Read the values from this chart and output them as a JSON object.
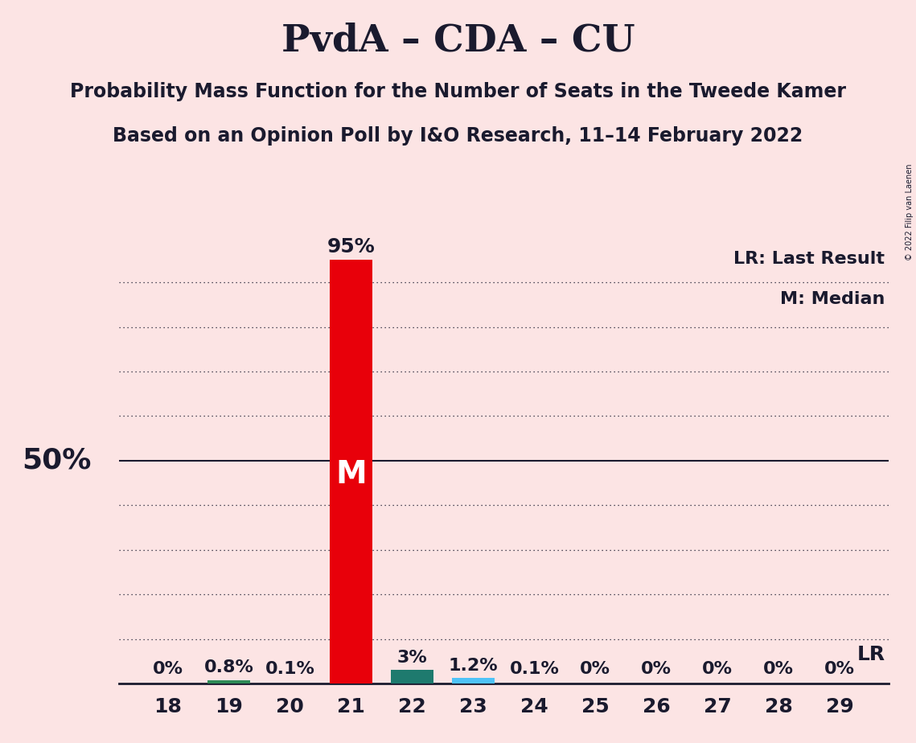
{
  "title": "PvdA – CDA – CU",
  "subtitle1": "Probability Mass Function for the Number of Seats in the Tweede Kamer",
  "subtitle2": "Based on an Opinion Poll by I&O Research, 11–14 February 2022",
  "copyright": "© 2022 Filip van Laenen",
  "seats": [
    18,
    19,
    20,
    21,
    22,
    23,
    24,
    25,
    26,
    27,
    28,
    29
  ],
  "probabilities": [
    0.0,
    0.8,
    0.1,
    95.0,
    3.0,
    1.2,
    0.1,
    0.0,
    0.0,
    0.0,
    0.0,
    0.0
  ],
  "prob_labels": [
    "0%",
    "0.8%",
    "0.1%",
    "95%",
    "3%",
    "1.2%",
    "0.1%",
    "0%",
    "0%",
    "0%",
    "0%",
    "0%"
  ],
  "bar_colors": [
    "#fce4e4",
    "#2e8b57",
    "#fce4e4",
    "#e8000a",
    "#1e7a6e",
    "#4fc3f7",
    "#fce4e4",
    "#fce4e4",
    "#fce4e4",
    "#fce4e4",
    "#fce4e4",
    "#fce4e4"
  ],
  "median_seat": 21,
  "lr_seat": 29,
  "background_color": "#fce4e4",
  "ylim": [
    0,
    100
  ],
  "ylabel_50": "50%",
  "legend_lr": "LR: Last Result",
  "legend_m": "M: Median",
  "lr_label": "LR",
  "median_label": "M",
  "grid_levels": [
    10,
    20,
    30,
    40,
    50,
    60,
    70,
    80,
    90
  ],
  "title_fontsize": 34,
  "subtitle_fontsize": 17,
  "tick_fontsize": 18,
  "label_fontsize": 16,
  "ylabel50_fontsize": 26,
  "legend_fontsize": 16,
  "median_label_fontsize": 28
}
